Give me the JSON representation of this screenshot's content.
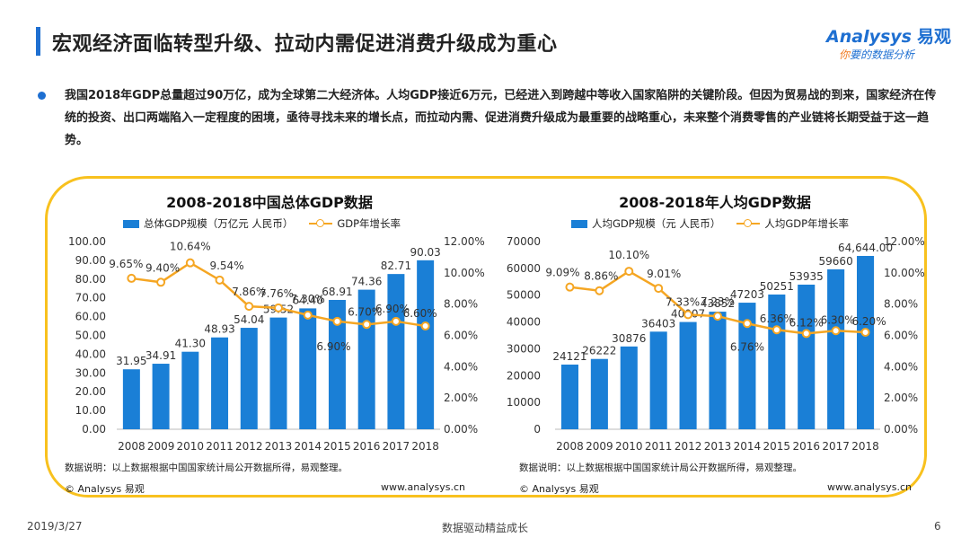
{
  "header": {
    "title": "宏观经济面临转型升级、拉动内需促进消费升级成为重心"
  },
  "logo": {
    "brand": "nalysys",
    "brand_prefix": "A",
    "brand_cn": "易观",
    "tagline_hl": "你",
    "tagline": "要的数据分析"
  },
  "summary": "我国2018年GDP总量超过90万亿，成为全球第二大经济体。人均GDP接近6万元，已经进入到跨越中等收入国家陷阱的关键阶段。但因为贸易战的到来，国家经济在传统的投资、出口两端陷入一定程度的困境，亟待寻找未来的增长点，而拉动内需、促进消费升级成为最重要的战略重心，未来整个消费零售的产业链将长期受益于这一趋势。",
  "colors": {
    "bar": "#1a7fd6",
    "line": "#f5a623",
    "frame": "#f8c11e",
    "accent": "#1e6fd1"
  },
  "chart_data": [
    {
      "type": "bar",
      "title": "2008-2018中国总体GDP数据",
      "categories": [
        "2008",
        "2009",
        "2010",
        "2011",
        "2012",
        "2013",
        "2014",
        "2015",
        "2016",
        "2017",
        "2018"
      ],
      "series": [
        {
          "name": "总体GDP规模（万亿元 人民币）",
          "type": "bar",
          "axis": "left",
          "values": [
            31.95,
            34.91,
            41.3,
            48.93,
            54.04,
            59.52,
            64.4,
            68.91,
            74.36,
            82.71,
            90.03
          ],
          "labels": [
            "31.95",
            "34.91",
            "41.30",
            "48.93",
            "54.04",
            "59.52",
            "64.40",
            "68.91",
            "74.36",
            "82.71",
            "90.03"
          ]
        },
        {
          "name": "GDP年增长率",
          "type": "line",
          "axis": "right",
          "values": [
            9.65,
            9.4,
            10.64,
            9.54,
            7.86,
            7.76,
            7.3,
            6.9,
            6.7,
            6.9,
            6.6
          ],
          "labels": [
            "9.65%",
            "9.40%",
            "10.64%",
            "9.54%",
            "7.86%",
            "7.76%",
            "7.30%",
            "6.90%",
            "6.70%",
            "6.90%",
            "6.60%"
          ]
        }
      ],
      "ylim_left": [
        0,
        100
      ],
      "yticks_left": [
        "0.00",
        "10.00",
        "20.00",
        "30.00",
        "40.00",
        "50.00",
        "60.00",
        "70.00",
        "80.00",
        "90.00",
        "100.00"
      ],
      "ylim_right": [
        0,
        12
      ],
      "yticks_right": [
        "0.00%",
        "2.00%",
        "4.00%",
        "6.00%",
        "8.00%",
        "10.00%",
        "12.00%"
      ],
      "legend": "top",
      "grid": false,
      "note": "数据说明：以上数据根据中国国家统计局公开数据所得，易观整理。",
      "copyright": "© Analysys 易观",
      "site": "www.analysys.cn"
    },
    {
      "type": "bar",
      "title": "2008-2018年人均GDP数据",
      "categories": [
        "2008",
        "2009",
        "2010",
        "2011",
        "2012",
        "2013",
        "2014",
        "2015",
        "2016",
        "2017",
        "2018"
      ],
      "series": [
        {
          "name": "人均GDP规模（元 人民币）",
          "type": "bar",
          "axis": "left",
          "values": [
            24121,
            26222,
            30876,
            36403,
            40007,
            43852,
            47203,
            50251,
            53935,
            59660,
            64644
          ],
          "labels": [
            "24121",
            "26222",
            "30876",
            "36403",
            "40007",
            "43852",
            "47203",
            "50251",
            "53935",
            "59660",
            "64,644.00"
          ]
        },
        {
          "name": "人均GDP年增长率",
          "type": "line",
          "axis": "right",
          "values": [
            9.09,
            8.86,
            10.1,
            9.01,
            7.33,
            7.23,
            6.76,
            6.36,
            6.12,
            6.3,
            6.2
          ],
          "labels": [
            "9.09%",
            "8.86%",
            "10.10%",
            "9.01%",
            "7.33%",
            "7.23%",
            "6.76%",
            "6.36%",
            "6.12%",
            "6.30%",
            "6.20%"
          ]
        }
      ],
      "ylim_left": [
        0,
        70000
      ],
      "yticks_left": [
        "0",
        "10000",
        "20000",
        "30000",
        "40000",
        "50000",
        "60000",
        "70000"
      ],
      "ylim_right": [
        0,
        12
      ],
      "yticks_right": [
        "0.00%",
        "2.00%",
        "4.00%",
        "6.00%",
        "8.00%",
        "10.00%",
        "12.00%"
      ],
      "legend": "top",
      "grid": false,
      "note": "数据说明：以上数据根据中国国家统计局公开数据所得，易观整理。",
      "copyright": "© Analysys 易观",
      "site": "www.analysys.cn"
    }
  ],
  "footer": {
    "date": "2019/3/27",
    "center": "数据驱动精益成长",
    "page": "6"
  }
}
